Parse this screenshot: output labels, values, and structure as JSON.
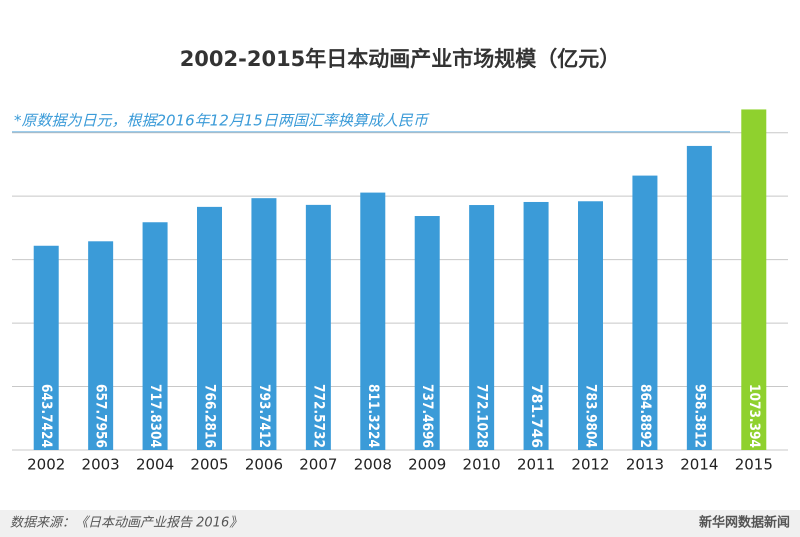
{
  "chart_data": {
    "type": "bar",
    "title": "2002-2015年日本动画产业市场规模（亿元）",
    "subtitle": "*原数据为日元，根据2016年12月15日两国汇率换算成人民币",
    "categories": [
      "2002",
      "2003",
      "2004",
      "2005",
      "2006",
      "2007",
      "2008",
      "2009",
      "2010",
      "2011",
      "2012",
      "2013",
      "2014",
      "2015"
    ],
    "values": [
      643.7424,
      657.7956,
      717.8304,
      766.2816,
      793.7412,
      772.5732,
      811.3224,
      737.4696,
      772.1028,
      781.746,
      783.9804,
      864.8892,
      958.3812,
      1073.394
    ],
    "colors": [
      "#3b9bd8",
      "#3b9bd8",
      "#3b9bd8",
      "#3b9bd8",
      "#3b9bd8",
      "#3b9bd8",
      "#3b9bd8",
      "#3b9bd8",
      "#3b9bd8",
      "#3b9bd8",
      "#3b9bd8",
      "#3b9bd8",
      "#3b9bd8",
      "#8fd12e"
    ],
    "ylim": [
      0,
      1100
    ],
    "yticks": [
      0,
      200,
      400,
      600,
      800,
      1000
    ],
    "grid": true,
    "source": "数据来源：《日本动画产业报告 2016》",
    "brand": "新华网数据新闻"
  }
}
